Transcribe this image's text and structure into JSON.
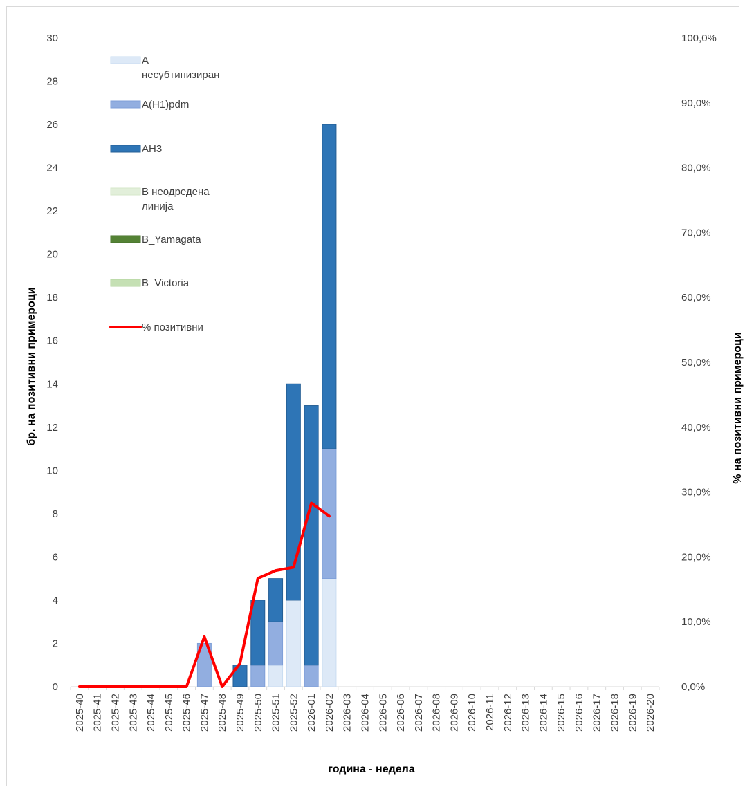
{
  "chart_data": {
    "type": "bar",
    "stacked": true,
    "categories": [
      "2025-40",
      "2025-41",
      "2025-42",
      "2025-43",
      "2025-44",
      "2025-45",
      "2025-46",
      "2025-47",
      "2025-48",
      "2025-49",
      "2025-50",
      "2025-51",
      "2025-52",
      "2026-01",
      "2026-02",
      "2026-03",
      "2026-04",
      "2026-05",
      "2026-06",
      "2026-07",
      "2026-08",
      "2026-09",
      "2026-10",
      "2026-11",
      "2026-12",
      "2026-13",
      "2026-14",
      "2026-15",
      "2026-16",
      "2026-17",
      "2026-18",
      "2026-19",
      "2026-20"
    ],
    "series": [
      {
        "name": "А несубтипизиран",
        "legend_lines": [
          "А",
          "несубтипизиран"
        ],
        "color": "#dde9f7",
        "stroke": "#c9dcf1",
        "values": [
          0,
          0,
          0,
          0,
          0,
          0,
          0,
          0,
          0,
          0,
          0,
          1,
          4,
          0,
          5,
          0,
          0,
          0,
          0,
          0,
          0,
          0,
          0,
          0,
          0,
          0,
          0,
          0,
          0,
          0,
          0,
          0,
          0
        ]
      },
      {
        "name": "А(H1)pdm",
        "legend_lines": [
          "А(H1)pdm"
        ],
        "color": "#92aee0",
        "stroke": "#7f9fd8",
        "values": [
          0,
          0,
          0,
          0,
          0,
          0,
          0,
          2,
          0,
          0,
          1,
          2,
          0,
          1,
          6,
          0,
          0,
          0,
          0,
          0,
          0,
          0,
          0,
          0,
          0,
          0,
          0,
          0,
          0,
          0,
          0,
          0,
          0
        ]
      },
      {
        "name": "AH3",
        "legend_lines": [
          "AH3"
        ],
        "color": "#2e75b6",
        "stroke": "#255f95",
        "values": [
          0,
          0,
          0,
          0,
          0,
          0,
          0,
          0,
          0,
          1,
          3,
          2,
          10,
          12,
          15,
          0,
          0,
          0,
          0,
          0,
          0,
          0,
          0,
          0,
          0,
          0,
          0,
          0,
          0,
          0,
          0,
          0,
          0
        ]
      },
      {
        "name": "В неодредена линија",
        "legend_lines": [
          "В неодредена",
          "линија"
        ],
        "color": "#e2efda",
        "stroke": "#d5e7ca",
        "values": [
          0,
          0,
          0,
          0,
          0,
          0,
          0,
          0,
          0,
          0,
          0,
          0,
          0,
          0,
          0,
          0,
          0,
          0,
          0,
          0,
          0,
          0,
          0,
          0,
          0,
          0,
          0,
          0,
          0,
          0,
          0,
          0,
          0
        ]
      },
      {
        "name": "B_Yamagata",
        "legend_lines": [
          "B_Yamagata"
        ],
        "color": "#548235",
        "stroke": "#44702a",
        "values": [
          0,
          0,
          0,
          0,
          0,
          0,
          0,
          0,
          0,
          0,
          0,
          0,
          0,
          0,
          0,
          0,
          0,
          0,
          0,
          0,
          0,
          0,
          0,
          0,
          0,
          0,
          0,
          0,
          0,
          0,
          0,
          0,
          0
        ]
      },
      {
        "name": "B_Victoria",
        "legend_lines": [
          "B_Victoria"
        ],
        "color": "#c5e0b4",
        "stroke": "#b5d6a1",
        "values": [
          0,
          0,
          0,
          0,
          0,
          0,
          0,
          0,
          0,
          0,
          0,
          0,
          0,
          0,
          0,
          0,
          0,
          0,
          0,
          0,
          0,
          0,
          0,
          0,
          0,
          0,
          0,
          0,
          0,
          0,
          0,
          0,
          0
        ]
      }
    ],
    "line_series": {
      "name": "% позитивни",
      "legend_lines": [
        "% позитивни"
      ],
      "color": "#ff0000",
      "axis": "right",
      "values": [
        0,
        0,
        0,
        0,
        0,
        0,
        0,
        7.7,
        0,
        3.6,
        16.7,
        17.9,
        18.4,
        28.3,
        26.3
      ]
    },
    "xlabel": "година - недела",
    "ylabel": "бр. на позитивни примероци",
    "ylabel_right": "% на позитивни примероци",
    "ylim": [
      0,
      30
    ],
    "ylim_right": [
      0,
      100
    ],
    "y_ticks": [
      "0",
      "2",
      "4",
      "6",
      "8",
      "10",
      "12",
      "14",
      "16",
      "18",
      "20",
      "22",
      "24",
      "26",
      "28",
      "30"
    ],
    "y_right_ticks": [
      "0,0%",
      "10,0%",
      "20,0%",
      "30,0%",
      "40,0%",
      "50,0%",
      "60,0%",
      "70,0%",
      "80,0%",
      "90,0%",
      "100,0%"
    ],
    "grid": false,
    "legend_position": "top-left"
  }
}
